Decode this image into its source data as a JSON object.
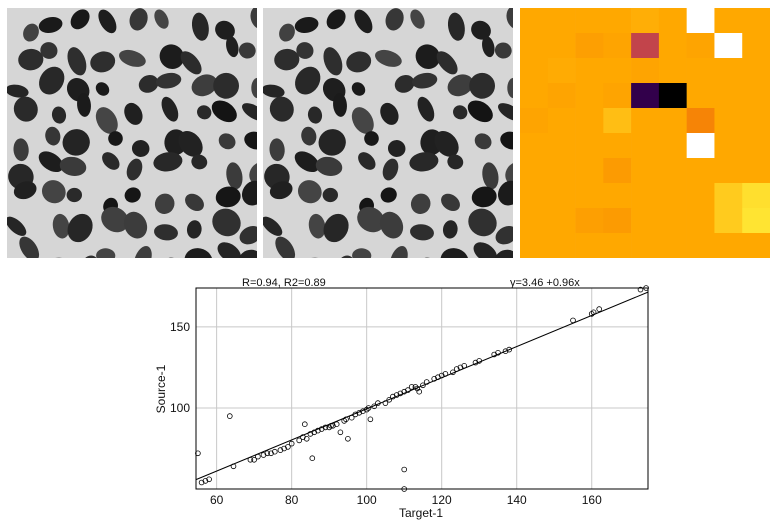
{
  "panels": {
    "source": {
      "icon": "blob-texture-image"
    },
    "target": {
      "icon": "blob-texture-image"
    },
    "heatmap": {
      "icon": "difference-heatmap",
      "rows": 10,
      "cols": 9,
      "values": [
        [
          0.62,
          0.62,
          0.62,
          0.62,
          0.6,
          0.62,
          0.0,
          0.62,
          0.62
        ],
        [
          0.62,
          0.62,
          0.64,
          0.63,
          0.8,
          0.62,
          0.63,
          0.0,
          0.62
        ],
        [
          0.62,
          0.61,
          0.62,
          0.62,
          0.63,
          0.62,
          0.62,
          0.62,
          0.62
        ],
        [
          0.62,
          0.63,
          0.62,
          0.63,
          0.95,
          1.0,
          0.62,
          0.62,
          0.62
        ],
        [
          0.63,
          0.62,
          0.62,
          0.55,
          0.62,
          0.62,
          0.7,
          0.62,
          0.62
        ],
        [
          0.62,
          0.62,
          0.62,
          0.62,
          0.62,
          0.62,
          0.0,
          0.62,
          0.62
        ],
        [
          0.62,
          0.62,
          0.62,
          0.65,
          0.62,
          0.62,
          0.62,
          0.62,
          0.62
        ],
        [
          0.62,
          0.62,
          0.62,
          0.62,
          0.62,
          0.62,
          0.62,
          0.5,
          0.42
        ],
        [
          0.62,
          0.62,
          0.64,
          0.65,
          0.62,
          0.62,
          0.62,
          0.5,
          0.4
        ],
        [
          0.62,
          0.62,
          0.62,
          0.62,
          0.62,
          0.62,
          0.62,
          0.62,
          0.62
        ]
      ]
    }
  },
  "chart_data": {
    "type": "scatter",
    "annotation_left": "R=0.94, R2=0.89",
    "annotation_right": "y=3.46 +0.96x",
    "xlabel": "Target-1",
    "ylabel": "Source-1",
    "xlim": [
      54.5,
      175
    ],
    "ylim": [
      50,
      174
    ],
    "xticks": [
      60,
      80,
      100,
      120,
      140,
      160
    ],
    "yticks": [
      100,
      150
    ],
    "grid": true,
    "fit": {
      "intercept": 3.46,
      "slope": 0.96
    },
    "x": [
      55,
      56,
      57,
      58,
      63.5,
      64.5,
      69,
      70,
      71,
      72.5,
      73.5,
      74.5,
      75.5,
      77,
      78,
      79,
      80,
      82,
      83,
      83.5,
      84,
      85,
      85.5,
      86,
      87,
      88,
      89,
      90,
      90.5,
      91,
      92,
      93,
      94,
      94.5,
      95,
      96,
      97,
      98,
      99,
      100,
      100.5,
      101,
      102,
      103,
      105,
      106,
      107,
      108,
      109,
      110,
      110,
      110,
      111,
      112,
      113,
      113.5,
      114,
      115,
      116,
      118,
      119,
      120,
      121,
      123,
      124,
      125,
      126,
      129,
      130,
      134,
      135,
      137,
      138,
      155,
      160,
      160.5,
      162,
      173,
      174.5
    ],
    "y": [
      72,
      54,
      55,
      56,
      95,
      64,
      68,
      68,
      70,
      71,
      72,
      72,
      73,
      74,
      75,
      76,
      78,
      80,
      82,
      90,
      81,
      84,
      69,
      85,
      86,
      87,
      88,
      88,
      89,
      89,
      90,
      85,
      92,
      93,
      81,
      94,
      96,
      97,
      98,
      99,
      100,
      93,
      101,
      103,
      103,
      105,
      107,
      108,
      109,
      110,
      62,
      50,
      111,
      113,
      113,
      112,
      110,
      114,
      116,
      118,
      119,
      120,
      121,
      122,
      124,
      125,
      126,
      128,
      129,
      133,
      134,
      135,
      136,
      154,
      158,
      159,
      161,
      173,
      174
    ]
  }
}
